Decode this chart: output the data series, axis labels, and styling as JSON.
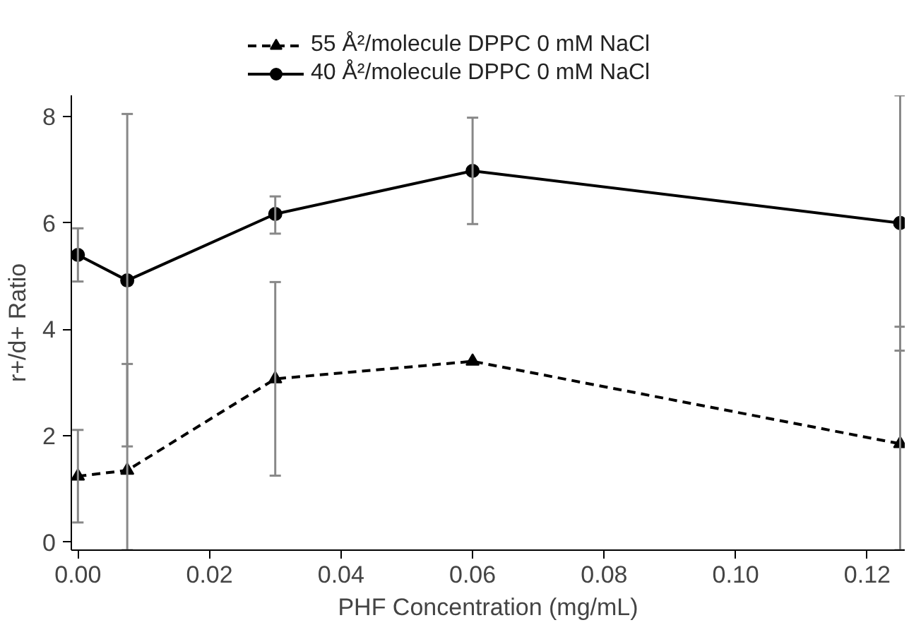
{
  "chart_data": {
    "type": "line",
    "xlabel": "PHF Concentration (mg/mL)",
    "ylabel": "r+/d+ Ratio",
    "xlim": [
      -0.001,
      0.1257
    ],
    "ylim": [
      -0.15,
      8.4
    ],
    "xticks": [
      {
        "value": 0,
        "label": "0.00"
      },
      {
        "value": 0.02,
        "label": "0.02"
      },
      {
        "value": 0.04,
        "label": "0.04"
      },
      {
        "value": 0.06,
        "label": "0.06"
      },
      {
        "value": 0.08,
        "label": "0.08"
      },
      {
        "value": 0.1,
        "label": "0.10"
      },
      {
        "value": 0.12,
        "label": "0.12"
      }
    ],
    "yticks": [
      0,
      2,
      4,
      6,
      8
    ],
    "x": [
      0,
      0.0075,
      0.03,
      0.06,
      0.125
    ],
    "grid": false,
    "legend": "top",
    "series": [
      {
        "name": "55 Å²/molecule DPPC 0 mM NaCl",
        "color": "#000000",
        "marker": "triangle",
        "line_style": "dashed",
        "values": [
          1.24,
          1.35,
          3.07,
          3.4,
          1.85
        ],
        "errors": [
          0.87,
          [
            -0.15,
            3.35
          ],
          1.82,
          null,
          [
            -0.15,
            4.05
          ]
        ]
      },
      {
        "name": "40 Å²/molecule DPPC 0 mM NaCl",
        "color": "#000000",
        "marker": "circle",
        "line_style": "solid",
        "values": [
          5.4,
          4.92,
          6.17,
          6.98,
          6.0
        ],
        "errors": [
          0.5,
          [
            1.8,
            8.05
          ],
          [
            5.8,
            6.5
          ],
          1.0,
          [
            3.6,
            8.4
          ]
        ]
      }
    ]
  }
}
